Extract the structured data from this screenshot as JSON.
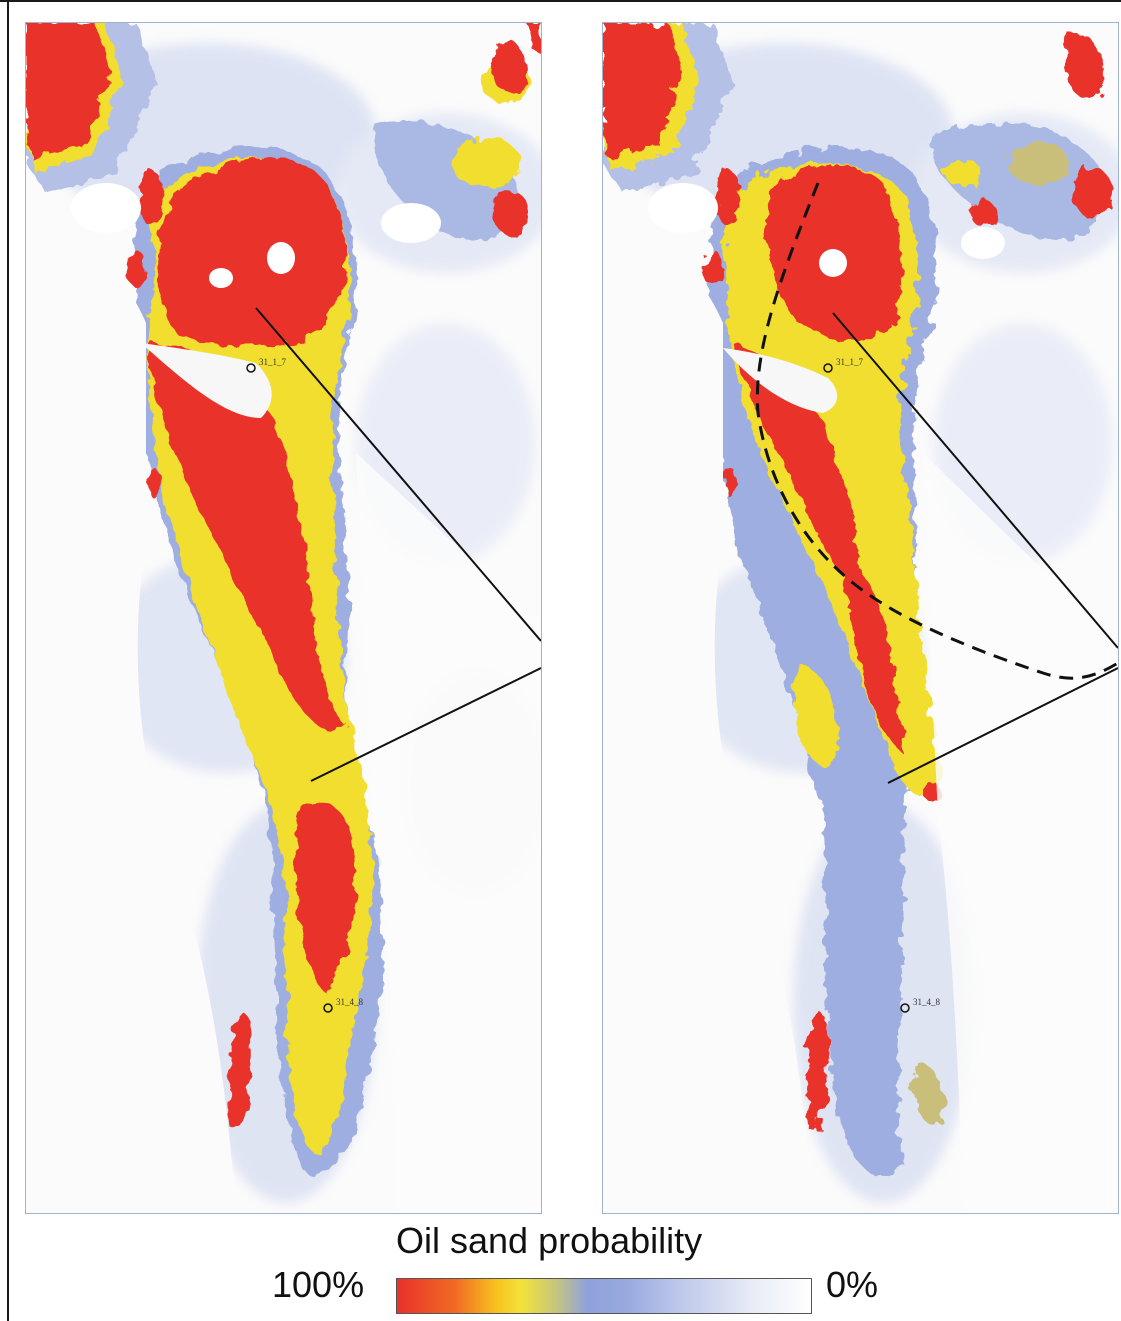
{
  "legend": {
    "title": "Oil sand probability",
    "max_label": "100%",
    "min_label": "0%",
    "colors": [
      "#e8312a",
      "#f7c21e",
      "#8fa1dc",
      "#ffffff"
    ]
  },
  "panels": [
    {
      "wells": [
        {
          "label": "31_1_7"
        },
        {
          "label": "31_4_8"
        }
      ],
      "boundary": "none"
    },
    {
      "wells": [
        {
          "label": "31_1_7"
        },
        {
          "label": "31_4_8"
        }
      ],
      "boundary": "dashed"
    }
  ],
  "colors": {
    "high": "#e8312a",
    "mid": "#f3df2a",
    "low": "#8ea0dc",
    "none": "#fbfbfb",
    "olive": "#c9bf7a"
  }
}
